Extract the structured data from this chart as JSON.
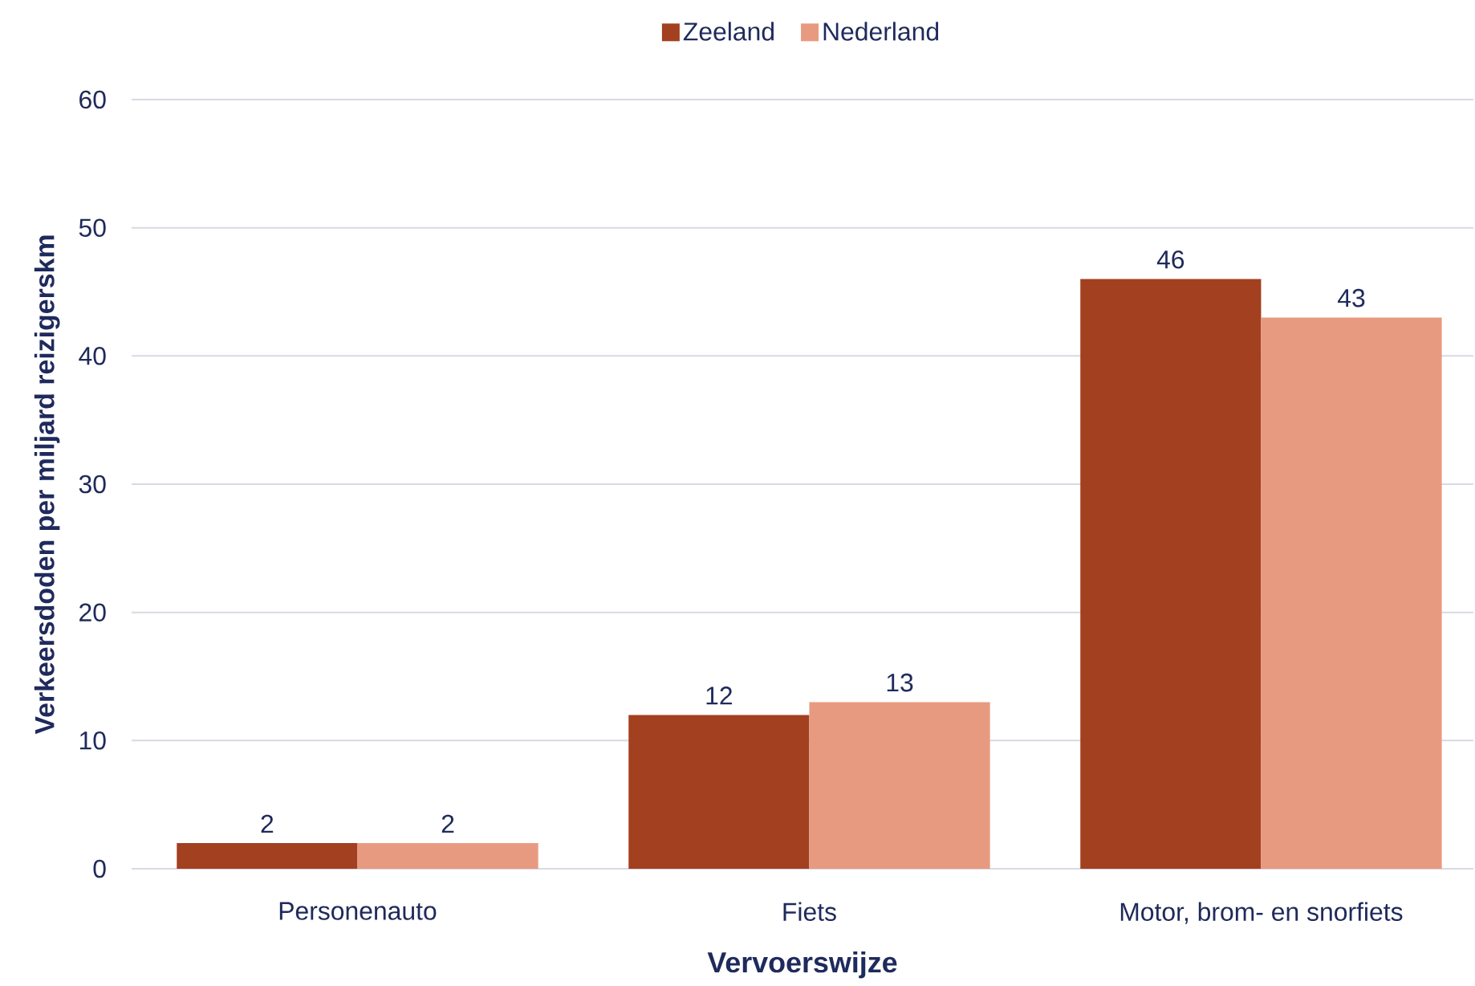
{
  "chart_data": {
    "type": "bar",
    "xlabel": "Vervoerswijze",
    "ylabel": "Verkeersdoden per miljard reizigerskm",
    "categories": [
      "Personenauto",
      "Fiets",
      "Motor, brom- en snorfiets"
    ],
    "series": [
      {
        "name": "Zeeland",
        "color": "#a2401f",
        "values": [
          2,
          12,
          46
        ]
      },
      {
        "name": "Nederland",
        "color": "#e89a80",
        "values": [
          2,
          13,
          43
        ]
      }
    ],
    "ylim": [
      0,
      60
    ],
    "yticks": [
      0,
      10,
      20,
      30,
      40,
      50,
      60
    ],
    "grid": "y",
    "legend": "top",
    "data_labels": true
  }
}
